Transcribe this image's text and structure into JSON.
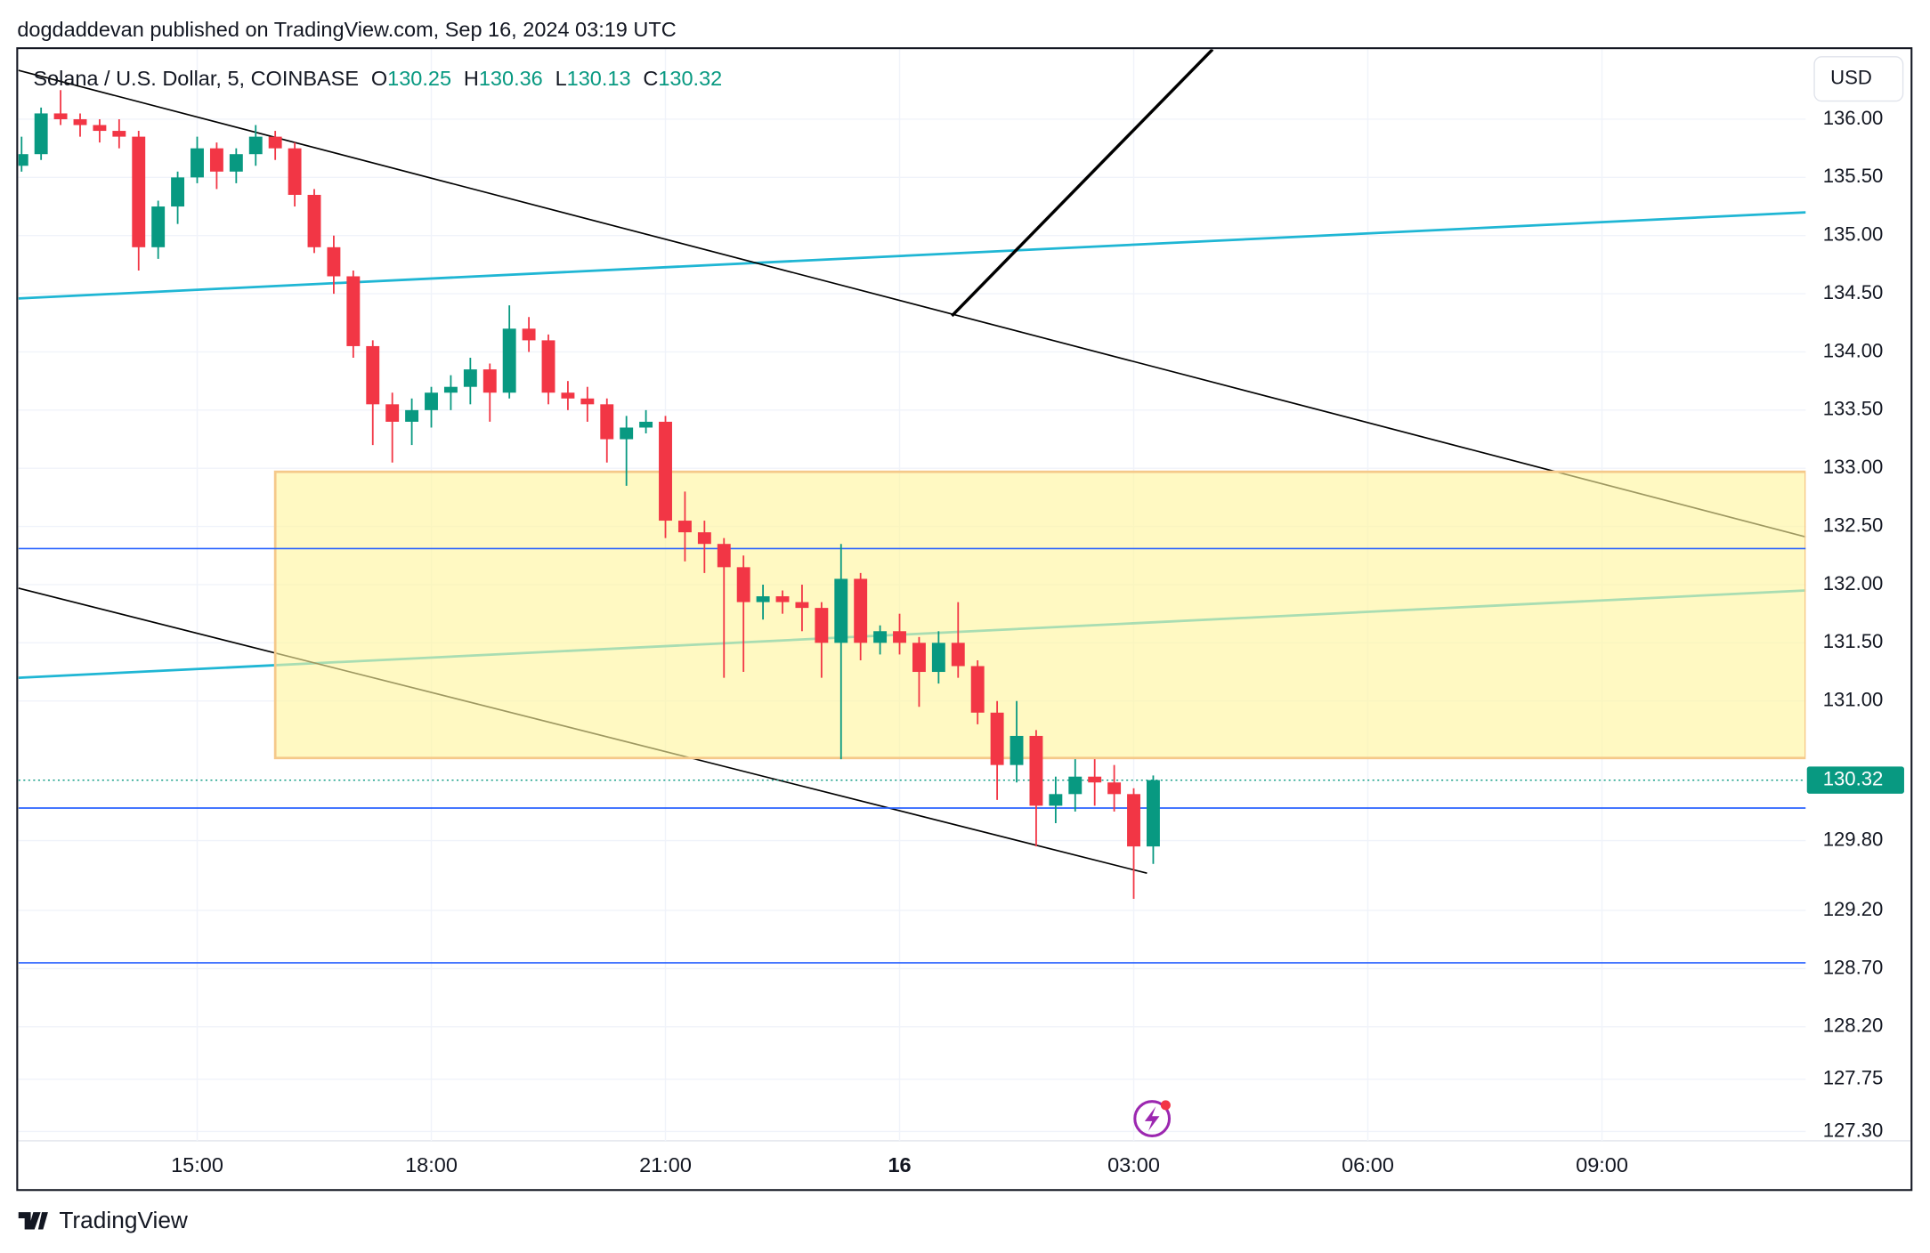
{
  "header": {
    "publisher": "dogdaddevan published on TradingView.com, Sep 16, 2024 03:19 UTC"
  },
  "footer": {
    "brand": "TradingView"
  },
  "chart_data": {
    "type": "candlestick",
    "symbol": "Solana / U.S. Dollar, 5, COINBASE",
    "ohlc_labels": [
      "O",
      "H",
      "L",
      "C"
    ],
    "ohlc_values": [
      130.25,
      130.36,
      130.13,
      130.32
    ],
    "currency": "USD",
    "up_color": "#089981",
    "down_color": "#f23645",
    "grid": true,
    "xlim": [
      12.71,
      35.61
    ],
    "xticks": [
      {
        "value": 15,
        "label": "15:00"
      },
      {
        "value": 18,
        "label": "18:00"
      },
      {
        "value": 21,
        "label": "21:00"
      },
      {
        "value": 24,
        "label": "16"
      },
      {
        "value": 27,
        "label": "03:00"
      },
      {
        "value": 30,
        "label": "06:00"
      },
      {
        "value": 33,
        "label": "09:00"
      }
    ],
    "ylim": [
      127.22,
      136.6
    ],
    "yticks": [
      {
        "value": 136,
        "label": "136.00"
      },
      {
        "value": 135.5,
        "label": "135.50"
      },
      {
        "value": 135,
        "label": "135.00"
      },
      {
        "value": 134.5,
        "label": "134.50"
      },
      {
        "value": 134,
        "label": "134.00"
      },
      {
        "value": 133.5,
        "label": "133.50"
      },
      {
        "value": 133,
        "label": "133.00"
      },
      {
        "value": 132.5,
        "label": "132.50"
      },
      {
        "value": 132,
        "label": "132.00"
      },
      {
        "value": 131.5,
        "label": "131.50"
      },
      {
        "value": 131,
        "label": "131.00"
      },
      {
        "value": 129.8,
        "label": "129.80"
      },
      {
        "value": 129.2,
        "label": "129.20"
      },
      {
        "value": 128.7,
        "label": "128.70"
      },
      {
        "value": 128.2,
        "label": "128.20"
      },
      {
        "value": 127.75,
        "label": "127.75"
      },
      {
        "value": 127.3,
        "label": "127.30"
      }
    ],
    "last_price": {
      "value": 130.32,
      "label": "130.32",
      "color": "#089981"
    },
    "levels": [
      132.31,
      130.08,
      128.75
    ],
    "level_color": "#2962ff",
    "zone": {
      "x0": 16.0,
      "y0": 130.51,
      "y1": 132.97,
      "color": "#fff59d",
      "border": "#f5c98a"
    },
    "trendlines": [
      {
        "x": [
          12.71,
          35.61
        ],
        "y": [
          134.46,
          135.2
        ],
        "color": "#1fb6d4",
        "width": 2
      },
      {
        "x": [
          12.71,
          35.61
        ],
        "y": [
          131.2,
          131.95
        ],
        "color": "#1fb6d4",
        "width": 2
      },
      {
        "x": [
          12.71,
          35.61
        ],
        "y": [
          136.42,
          132.41
        ],
        "color": "#000000",
        "width": 1.2
      },
      {
        "x": [
          12.71,
          27.17
        ],
        "y": [
          131.97,
          129.52
        ],
        "color": "#000000",
        "width": 1.2
      },
      {
        "x": [
          24.67,
          28.01
        ],
        "y": [
          134.31,
          136.6
        ],
        "color": "#000000",
        "width": 2.5
      }
    ],
    "candles": [
      {
        "x": 12.75,
        "o": 135.6,
        "h": 135.85,
        "l": 135.55,
        "c": 135.7
      },
      {
        "x": 13.0,
        "o": 135.7,
        "h": 136.1,
        "l": 135.65,
        "c": 136.05
      },
      {
        "x": 13.25,
        "o": 136.05,
        "h": 136.25,
        "l": 135.95,
        "c": 136.0
      },
      {
        "x": 13.5,
        "o": 136.0,
        "h": 136.05,
        "l": 135.85,
        "c": 135.95
      },
      {
        "x": 13.75,
        "o": 135.95,
        "h": 136.0,
        "l": 135.8,
        "c": 135.9
      },
      {
        "x": 14.0,
        "o": 135.9,
        "h": 136.0,
        "l": 135.75,
        "c": 135.85
      },
      {
        "x": 14.25,
        "o": 135.85,
        "h": 135.9,
        "l": 134.7,
        "c": 134.9
      },
      {
        "x": 14.5,
        "o": 134.9,
        "h": 135.3,
        "l": 134.8,
        "c": 135.25
      },
      {
        "x": 14.75,
        "o": 135.25,
        "h": 135.55,
        "l": 135.1,
        "c": 135.5
      },
      {
        "x": 15.0,
        "o": 135.5,
        "h": 135.85,
        "l": 135.45,
        "c": 135.75
      },
      {
        "x": 15.25,
        "o": 135.75,
        "h": 135.8,
        "l": 135.4,
        "c": 135.55
      },
      {
        "x": 15.5,
        "o": 135.55,
        "h": 135.75,
        "l": 135.45,
        "c": 135.7
      },
      {
        "x": 15.75,
        "o": 135.7,
        "h": 135.95,
        "l": 135.6,
        "c": 135.85
      },
      {
        "x": 16.0,
        "o": 135.85,
        "h": 135.9,
        "l": 135.65,
        "c": 135.75
      },
      {
        "x": 16.25,
        "o": 135.75,
        "h": 135.8,
        "l": 135.25,
        "c": 135.35
      },
      {
        "x": 16.5,
        "o": 135.35,
        "h": 135.4,
        "l": 134.85,
        "c": 134.9
      },
      {
        "x": 16.75,
        "o": 134.9,
        "h": 135.0,
        "l": 134.5,
        "c": 134.65
      },
      {
        "x": 17.0,
        "o": 134.65,
        "h": 134.7,
        "l": 133.95,
        "c": 134.05
      },
      {
        "x": 17.25,
        "o": 134.05,
        "h": 134.1,
        "l": 133.2,
        "c": 133.55
      },
      {
        "x": 17.5,
        "o": 133.55,
        "h": 133.65,
        "l": 133.05,
        "c": 133.4
      },
      {
        "x": 17.75,
        "o": 133.4,
        "h": 133.6,
        "l": 133.2,
        "c": 133.5
      },
      {
        "x": 18.0,
        "o": 133.5,
        "h": 133.7,
        "l": 133.35,
        "c": 133.65
      },
      {
        "x": 18.25,
        "o": 133.65,
        "h": 133.8,
        "l": 133.5,
        "c": 133.7
      },
      {
        "x": 18.5,
        "o": 133.7,
        "h": 133.95,
        "l": 133.55,
        "c": 133.85
      },
      {
        "x": 18.75,
        "o": 133.85,
        "h": 133.9,
        "l": 133.4,
        "c": 133.65
      },
      {
        "x": 19.0,
        "o": 133.65,
        "h": 134.4,
        "l": 133.6,
        "c": 134.2
      },
      {
        "x": 19.25,
        "o": 134.2,
        "h": 134.3,
        "l": 134.0,
        "c": 134.1
      },
      {
        "x": 19.5,
        "o": 134.1,
        "h": 134.15,
        "l": 133.55,
        "c": 133.65
      },
      {
        "x": 19.75,
        "o": 133.65,
        "h": 133.75,
        "l": 133.5,
        "c": 133.6
      },
      {
        "x": 20.0,
        "o": 133.6,
        "h": 133.7,
        "l": 133.4,
        "c": 133.55
      },
      {
        "x": 20.25,
        "o": 133.55,
        "h": 133.6,
        "l": 133.05,
        "c": 133.25
      },
      {
        "x": 20.5,
        "o": 133.25,
        "h": 133.45,
        "l": 132.85,
        "c": 133.35
      },
      {
        "x": 20.75,
        "o": 133.35,
        "h": 133.5,
        "l": 133.3,
        "c": 133.4
      },
      {
        "x": 21.0,
        "o": 133.4,
        "h": 133.45,
        "l": 132.4,
        "c": 132.55
      },
      {
        "x": 21.25,
        "o": 132.55,
        "h": 132.8,
        "l": 132.2,
        "c": 132.45
      },
      {
        "x": 21.5,
        "o": 132.45,
        "h": 132.55,
        "l": 132.1,
        "c": 132.35
      },
      {
        "x": 21.75,
        "o": 132.35,
        "h": 132.4,
        "l": 131.2,
        "c": 132.15
      },
      {
        "x": 22.0,
        "o": 132.15,
        "h": 132.25,
        "l": 131.25,
        "c": 131.85
      },
      {
        "x": 22.25,
        "o": 131.85,
        "h": 132.0,
        "l": 131.7,
        "c": 131.9
      },
      {
        "x": 22.5,
        "o": 131.9,
        "h": 131.95,
        "l": 131.75,
        "c": 131.85
      },
      {
        "x": 22.75,
        "o": 131.85,
        "h": 132.0,
        "l": 131.6,
        "c": 131.8
      },
      {
        "x": 23.0,
        "o": 131.8,
        "h": 131.85,
        "l": 131.2,
        "c": 131.5
      },
      {
        "x": 23.25,
        "o": 131.5,
        "h": 132.35,
        "l": 130.5,
        "c": 132.05
      },
      {
        "x": 23.5,
        "o": 132.05,
        "h": 132.1,
        "l": 131.35,
        "c": 131.5
      },
      {
        "x": 23.75,
        "o": 131.5,
        "h": 131.65,
        "l": 131.4,
        "c": 131.6
      },
      {
        "x": 24.0,
        "o": 131.6,
        "h": 131.75,
        "l": 131.4,
        "c": 131.5
      },
      {
        "x": 24.25,
        "o": 131.5,
        "h": 131.55,
        "l": 130.95,
        "c": 131.25
      },
      {
        "x": 24.5,
        "o": 131.25,
        "h": 131.6,
        "l": 131.15,
        "c": 131.5
      },
      {
        "x": 24.75,
        "o": 131.5,
        "h": 131.85,
        "l": 131.2,
        "c": 131.3
      },
      {
        "x": 25.0,
        "o": 131.3,
        "h": 131.35,
        "l": 130.8,
        "c": 130.9
      },
      {
        "x": 25.25,
        "o": 130.9,
        "h": 131.0,
        "l": 130.15,
        "c": 130.45
      },
      {
        "x": 25.5,
        "o": 130.45,
        "h": 131.0,
        "l": 130.3,
        "c": 130.7
      },
      {
        "x": 25.75,
        "o": 130.7,
        "h": 130.75,
        "l": 129.75,
        "c": 130.1
      },
      {
        "x": 26.0,
        "o": 130.1,
        "h": 130.35,
        "l": 129.95,
        "c": 130.2
      },
      {
        "x": 26.25,
        "o": 130.2,
        "h": 130.5,
        "l": 130.05,
        "c": 130.35
      },
      {
        "x": 26.5,
        "o": 130.35,
        "h": 130.5,
        "l": 130.1,
        "c": 130.3
      },
      {
        "x": 26.75,
        "o": 130.3,
        "h": 130.45,
        "l": 130.05,
        "c": 130.2
      },
      {
        "x": 27.0,
        "o": 130.2,
        "h": 130.25,
        "l": 129.3,
        "c": 129.75
      },
      {
        "x": 27.25,
        "o": 129.75,
        "h": 130.36,
        "l": 129.6,
        "c": 130.32
      }
    ]
  }
}
